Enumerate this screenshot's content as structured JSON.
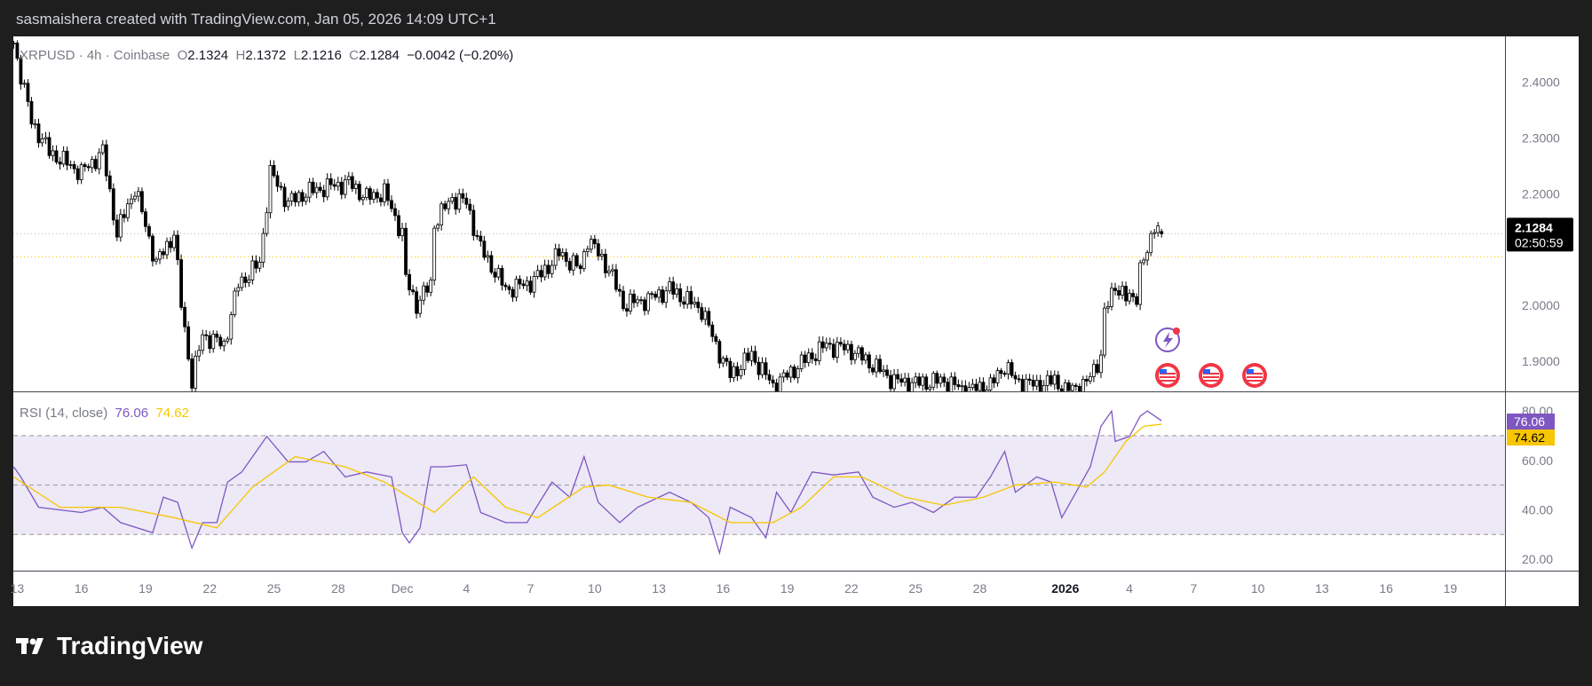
{
  "header": {
    "caption": "sasmaishera created with TradingView.com, Jan 05, 2026 14:09 UTC+1"
  },
  "legend": {
    "symbol": "XRPUSD · 4h · Coinbase",
    "o_label": "O",
    "o": "2.1324",
    "h_label": "H",
    "h": "2.1372",
    "l_label": "L",
    "l": "2.1216",
    "c_label": "C",
    "c": "2.1284",
    "change": "−0.0042 (−0.20%)"
  },
  "rsi_legend": {
    "name": "RSI (14, close)",
    "rsi": "76.06",
    "ma": "74.62"
  },
  "price_tag": {
    "price": "2.1284",
    "countdown": "02:50:59"
  },
  "logo": {
    "text": "TradingView"
  },
  "colors": {
    "rsi": "#7e57c2",
    "rsi_ma": "#f7c600",
    "band": "#ede9f6",
    "tag_bg": "#000000"
  },
  "events": [
    "lightning-icon",
    "us-flag-icon",
    "us-flag-icon",
    "us-flag-icon"
  ],
  "chart_data": [
    {
      "type": "candlestick",
      "title": "XRPUSD · 4h · Coinbase",
      "yaxis_ticks": [
        "2.4000",
        "2.3000",
        "2.2000",
        "2.0000",
        "1.9000"
      ],
      "ylim": [
        1.84,
        2.47
      ],
      "last_candle": {
        "open": 2.1324,
        "high": 2.1372,
        "low": 2.1216,
        "close": 2.1284
      },
      "prev_close_line": 2.087,
      "close_path": [
        [
          "2025-11-12T20",
          2.47
        ],
        [
          "2025-11-13T16",
          2.33
        ],
        [
          "2025-11-14T12",
          2.275
        ],
        [
          "2025-11-16T00",
          2.238
        ],
        [
          "2025-11-17T00",
          2.275
        ],
        [
          "2025-11-17T16",
          2.129
        ],
        [
          "2025-11-18T12",
          2.211
        ],
        [
          "2025-11-19T12",
          2.075
        ],
        [
          "2025-11-20T08",
          2.129
        ],
        [
          "2025-11-20T16",
          2.002
        ],
        [
          "2025-11-21T04",
          1.865
        ],
        [
          "2025-11-21T16",
          1.947
        ],
        [
          "2025-11-22T16",
          1.929
        ],
        [
          "2025-11-23T08",
          2.038
        ],
        [
          "2025-11-24T08",
          2.075
        ],
        [
          "2025-11-24T20",
          2.238
        ],
        [
          "2025-11-25T16",
          2.184
        ],
        [
          "2025-11-26T12",
          2.202
        ],
        [
          "2025-11-27T08",
          2.211
        ],
        [
          "2025-11-28T12",
          2.22
        ],
        [
          "2025-11-29T08",
          2.193
        ],
        [
          "2025-11-30T04",
          2.202
        ],
        [
          "2025-12-01T00",
          2.129
        ],
        [
          "2025-12-01T04",
          2.047
        ],
        [
          "2025-12-01T16",
          2.002
        ],
        [
          "2025-12-02T08",
          2.038
        ],
        [
          "2025-12-02T12",
          2.147
        ],
        [
          "2025-12-03T08",
          2.193
        ],
        [
          "2025-12-04T00",
          2.184
        ],
        [
          "2025-12-04T16",
          2.102
        ],
        [
          "2025-12-05T20",
          2.029
        ],
        [
          "2025-12-06T20",
          2.038
        ],
        [
          "2025-12-07T12",
          2.056
        ],
        [
          "2025-12-08T08",
          2.093
        ],
        [
          "2025-12-09T08",
          2.065
        ],
        [
          "2025-12-09T16",
          2.12
        ],
        [
          "2025-12-10T16",
          2.065
        ],
        [
          "2025-12-11T08",
          2.002
        ],
        [
          "2025-12-12T12",
          2.011
        ],
        [
          "2025-12-13T12",
          2.029
        ],
        [
          "2025-12-15T00",
          1.993
        ],
        [
          "2025-12-15T16",
          1.929
        ],
        [
          "2025-12-16T08",
          1.875
        ],
        [
          "2025-12-17T08",
          1.911
        ],
        [
          "2025-12-18T08",
          1.856
        ],
        [
          "2025-12-19T00",
          1.875
        ],
        [
          "2025-12-19T20",
          1.902
        ],
        [
          "2025-12-20T20",
          1.929
        ],
        [
          "2025-12-22T00",
          1.92
        ],
        [
          "2025-12-23T00",
          1.893
        ],
        [
          "2025-12-24T00",
          1.865
        ],
        [
          "2025-12-24T20",
          1.86
        ],
        [
          "2025-12-26T08",
          1.865
        ],
        [
          "2025-12-27T08",
          1.847
        ],
        [
          "2025-12-28T12",
          1.856
        ],
        [
          "2025-12-29T04",
          1.893
        ],
        [
          "2025-12-29T16",
          1.865
        ],
        [
          "2025-12-30T16",
          1.856
        ],
        [
          "2025-12-31T12",
          1.865
        ],
        [
          "2026-01-01T00",
          1.847
        ],
        [
          "2026-01-02T00",
          1.86
        ],
        [
          "2026-01-02T16",
          1.911
        ],
        [
          "2026-01-02T20",
          1.984
        ],
        [
          "2026-01-03T08",
          2.038
        ],
        [
          "2026-01-03T20",
          2.011
        ],
        [
          "2026-01-04T08",
          2.02
        ],
        [
          "2026-01-04T12",
          2.065
        ],
        [
          "2026-01-04T20",
          2.093
        ],
        [
          "2026-01-05T04",
          2.15
        ],
        [
          "2026-01-05T12",
          2.1284
        ]
      ]
    },
    {
      "type": "line",
      "title": "RSI (14, close)",
      "yaxis_ticks": [
        "80.00",
        "60.00",
        "40.00",
        "20.00"
      ],
      "bands": [
        30,
        50,
        70
      ],
      "series": [
        {
          "name": "RSI",
          "color": "#7e57c2",
          "points": [
            [
              "2025-11-12T20",
              57.4
            ],
            [
              "2025-11-13T04",
              53.3
            ],
            [
              "2025-11-14T00",
              41
            ],
            [
              "2025-11-16T00",
              38.9
            ],
            [
              "2025-11-17T00",
              41
            ],
            [
              "2025-11-17T20",
              34.8
            ],
            [
              "2025-11-19T08",
              30.7
            ],
            [
              "2025-11-19T20",
              45.1
            ],
            [
              "2025-11-20T12",
              43
            ],
            [
              "2025-11-21T04",
              24.5
            ],
            [
              "2025-11-21T16",
              34.8
            ],
            [
              "2025-11-22T08",
              34.8
            ],
            [
              "2025-11-22T20",
              51.2
            ],
            [
              "2025-11-23T12",
              55.3
            ],
            [
              "2025-11-24T16",
              69.7
            ],
            [
              "2025-11-25T16",
              59.4
            ],
            [
              "2025-11-26T12",
              59.4
            ],
            [
              "2025-11-27T08",
              63.6
            ],
            [
              "2025-11-28T08",
              53.3
            ],
            [
              "2025-11-29T08",
              55.3
            ],
            [
              "2025-11-30T12",
              53.3
            ],
            [
              "2025-12-01T00",
              30.7
            ],
            [
              "2025-12-01T08",
              26.6
            ],
            [
              "2025-12-01T20",
              32.7
            ],
            [
              "2025-12-02T08",
              57.4
            ],
            [
              "2025-12-03T00",
              57.4
            ],
            [
              "2025-12-04T00",
              58.2
            ],
            [
              "2025-12-04T16",
              38.9
            ],
            [
              "2025-12-05T20",
              34.8
            ],
            [
              "2025-12-06T20",
              34.8
            ],
            [
              "2025-12-08T00",
              51.2
            ],
            [
              "2025-12-08T20",
              45.1
            ],
            [
              "2025-12-09T12",
              61.5
            ],
            [
              "2025-12-10T04",
              43
            ],
            [
              "2025-12-11T04",
              34.8
            ],
            [
              "2025-12-12T00",
              41
            ],
            [
              "2025-12-13T12",
              47.1
            ],
            [
              "2025-12-14T12",
              43
            ],
            [
              "2025-12-15T08",
              36.8
            ],
            [
              "2025-12-15T20",
              22.5
            ],
            [
              "2025-12-16T08",
              41
            ],
            [
              "2025-12-17T08",
              36.8
            ],
            [
              "2025-12-18T00",
              28.6
            ],
            [
              "2025-12-18T12",
              47.1
            ],
            [
              "2025-12-19T04",
              38.9
            ],
            [
              "2025-12-20T04",
              55.3
            ],
            [
              "2025-12-21T04",
              54.1
            ],
            [
              "2025-12-22T08",
              55.3
            ],
            [
              "2025-12-23T00",
              45.1
            ],
            [
              "2025-12-24T00",
              41
            ],
            [
              "2025-12-24T20",
              43
            ],
            [
              "2025-12-25T20",
              38.9
            ],
            [
              "2025-12-26T20",
              45.1
            ],
            [
              "2025-12-27T20",
              45.1
            ],
            [
              "2025-12-28T12",
              53.3
            ],
            [
              "2025-12-29T04",
              63.6
            ],
            [
              "2025-12-29T16",
              47.1
            ],
            [
              "2025-12-30T16",
              53.3
            ],
            [
              "2025-12-31T08",
              51.2
            ],
            [
              "2025-12-31T20",
              36.8
            ],
            [
              "2026-01-01T12",
              47.1
            ],
            [
              "2026-01-02T04",
              57.4
            ],
            [
              "2026-01-02T16",
              73.8
            ],
            [
              "2026-01-03T04",
              80
            ],
            [
              "2026-01-03T08",
              67.7
            ],
            [
              "2026-01-04T00",
              69.7
            ],
            [
              "2026-01-04T12",
              77.9
            ],
            [
              "2026-01-04T20",
              80
            ],
            [
              "2026-01-05T12",
              76.06
            ]
          ]
        },
        {
          "name": "RSI-based MA",
          "color": "#f7c600",
          "points": [
            [
              "2025-11-12T20",
              53.3
            ],
            [
              "2025-11-15T00",
              41
            ],
            [
              "2025-11-17T20",
              41
            ],
            [
              "2025-11-20T08",
              36.8
            ],
            [
              "2025-11-22T08",
              32.7
            ],
            [
              "2025-11-24T00",
              49.2
            ],
            [
              "2025-11-26T00",
              61.5
            ],
            [
              "2025-11-28T08",
              57.4
            ],
            [
              "2025-11-30T04",
              51.2
            ],
            [
              "2025-12-02T12",
              38.9
            ],
            [
              "2025-12-04T08",
              53.3
            ],
            [
              "2025-12-05T20",
              41
            ],
            [
              "2025-12-07T08",
              36.8
            ],
            [
              "2025-12-09T12",
              49.2
            ],
            [
              "2025-12-10T16",
              50
            ],
            [
              "2025-12-12T12",
              45.1
            ],
            [
              "2025-12-14T12",
              43
            ],
            [
              "2025-12-16T08",
              34.8
            ],
            [
              "2025-12-18T08",
              34.8
            ],
            [
              "2025-12-19T16",
              41
            ],
            [
              "2025-12-21T04",
              53.3
            ],
            [
              "2025-12-22T12",
              53.3
            ],
            [
              "2025-12-24T12",
              45.1
            ],
            [
              "2025-12-26T08",
              41.8
            ],
            [
              "2025-12-28T04",
              45.1
            ],
            [
              "2025-12-29T16",
              50
            ],
            [
              "2025-12-31T12",
              51.2
            ],
            [
              "2026-01-02T00",
              49.2
            ],
            [
              "2026-01-02T20",
              55.3
            ],
            [
              "2026-01-03T20",
              67.7
            ],
            [
              "2026-01-04T16",
              73.8
            ],
            [
              "2026-01-05T12",
              74.62
            ]
          ]
        }
      ]
    },
    {
      "type": "time_axis",
      "labels": [
        [
          "13",
          "2025-11-13"
        ],
        [
          "16",
          "2025-11-16"
        ],
        [
          "19",
          "2025-11-19"
        ],
        [
          "22",
          "2025-11-22"
        ],
        [
          "25",
          "2025-11-25"
        ],
        [
          "28",
          "2025-11-28"
        ],
        [
          "Dec",
          "2025-12-01"
        ],
        [
          "4",
          "2025-12-04"
        ],
        [
          "7",
          "2025-12-07"
        ],
        [
          "10",
          "2025-12-10"
        ],
        [
          "13",
          "2025-12-13"
        ],
        [
          "16",
          "2025-12-16"
        ],
        [
          "19",
          "2025-12-19"
        ],
        [
          "22",
          "2025-12-22"
        ],
        [
          "25",
          "2025-12-25"
        ],
        [
          "28",
          "2025-12-28"
        ],
        [
          "2026",
          "2026-01-01"
        ],
        [
          "4",
          "2026-01-04"
        ],
        [
          "7",
          "2026-01-07"
        ],
        [
          "10",
          "2026-01-10"
        ],
        [
          "13",
          "2026-01-13"
        ],
        [
          "16",
          "2026-01-16"
        ],
        [
          "19",
          "2026-01-19"
        ]
      ]
    }
  ]
}
